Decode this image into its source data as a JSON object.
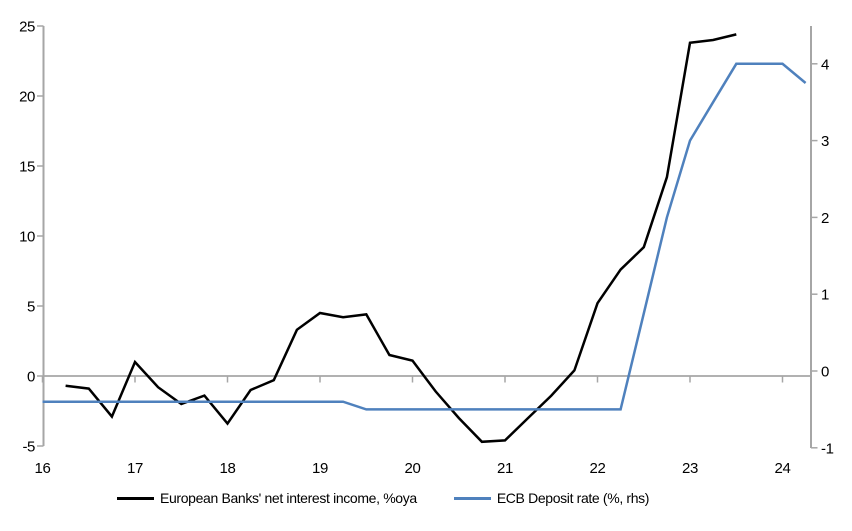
{
  "chart_data": {
    "type": "line",
    "x_axis": {
      "tick_labels": [
        "16",
        "17",
        "18",
        "19",
        "20",
        "21",
        "22",
        "23",
        "24"
      ],
      "range": [
        16,
        24.45
      ]
    },
    "left_y_axis": {
      "ticks": [
        -5,
        0,
        5,
        10,
        15,
        20,
        25
      ],
      "tick_labels": [
        "-5",
        "0",
        "5",
        "10",
        "15",
        "20",
        "25"
      ],
      "range": [
        -5,
        25
      ]
    },
    "right_y_axis": {
      "ticks": [
        -1,
        0,
        1,
        2,
        3,
        4
      ],
      "tick_labels": [
        "-1",
        "0",
        "1",
        "2",
        "3",
        "4"
      ],
      "range": [
        -1.05,
        4.5
      ]
    },
    "grid": "zero-line-only",
    "legend_position": "bottom",
    "series": [
      {
        "name": "European Banks' net interest income, %oya",
        "axis": "left",
        "color": "#000000",
        "x": [
          16.25,
          16.5,
          16.75,
          17.0,
          17.25,
          17.5,
          17.75,
          18.0,
          18.25,
          18.5,
          18.75,
          19.0,
          19.25,
          19.5,
          19.75,
          20.0,
          20.25,
          20.5,
          20.75,
          21.0,
          21.25,
          21.5,
          21.75,
          22.0,
          22.25,
          22.5,
          22.75,
          23.0,
          23.25,
          23.5
        ],
        "values": [
          -0.7,
          -0.9,
          -2.9,
          1.0,
          -0.8,
          -2.0,
          -1.4,
          -3.4,
          -1.0,
          -0.3,
          3.3,
          4.5,
          4.2,
          4.4,
          1.5,
          1.1,
          -1.1,
          -3.0,
          -4.7,
          -4.6,
          -3.0,
          -1.4,
          0.4,
          5.2,
          7.6,
          9.2,
          14.2,
          23.8,
          24.0,
          24.4
        ]
      },
      {
        "name": "ECB Deposit rate (%, rhs)",
        "axis": "right",
        "color": "#4F81BD",
        "x": [
          16.0,
          16.25,
          16.5,
          16.75,
          17.0,
          17.25,
          17.5,
          17.75,
          18.0,
          18.25,
          18.5,
          18.75,
          19.0,
          19.25,
          19.5,
          19.75,
          20.0,
          20.25,
          20.5,
          20.75,
          21.0,
          21.25,
          21.5,
          21.75,
          22.0,
          22.25,
          22.5,
          22.75,
          23.0,
          23.25,
          23.5,
          23.75,
          24.0,
          24.25
        ],
        "values": [
          -0.4,
          -0.4,
          -0.4,
          -0.4,
          -0.4,
          -0.4,
          -0.4,
          -0.4,
          -0.4,
          -0.4,
          -0.4,
          -0.4,
          -0.4,
          -0.4,
          -0.5,
          -0.5,
          -0.5,
          -0.5,
          -0.5,
          -0.5,
          -0.5,
          -0.5,
          -0.5,
          -0.5,
          -0.5,
          -0.5,
          0.75,
          2.0,
          3.0,
          3.5,
          4.0,
          4.0,
          4.0,
          3.75
        ]
      }
    ]
  },
  "colors": {
    "axis_line": "#A6A6A6",
    "zero_gridline": "#A6A6A6",
    "tick_text": "#000000",
    "background": "#FFFFFF"
  }
}
